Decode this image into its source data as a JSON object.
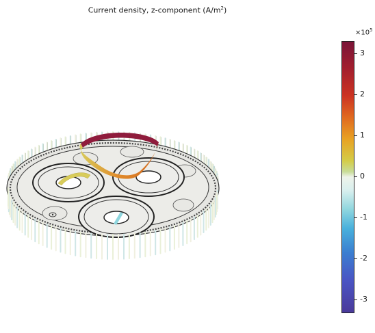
{
  "plot": {
    "title_text": "Current density, z-component (A/m",
    "title_sup": "2",
    "title_close": ")"
  },
  "colorbar": {
    "exponent_base": "×10",
    "exponent_power": "5",
    "tick_labels": [
      "3",
      "2",
      "1",
      "0",
      "-1",
      "-2",
      "-3"
    ],
    "ticks": [
      3,
      2,
      1,
      0,
      -1,
      -2,
      -3
    ],
    "range": [
      -3.3,
      3.3
    ],
    "colors": {
      "max": "#7a1538",
      "high": "#cc3322",
      "mid_high": "#e8a224",
      "zero": "#eef3ea",
      "mid_low": "#8fd6de",
      "low": "#3b7ed0",
      "min": "#4a3a9a"
    }
  },
  "scene": {
    "armor_wire_colors": [
      "#eaf0d8",
      "#cfe6e6",
      "#f0f0e0"
    ],
    "ribbon_colors": {
      "top": "#8f1c3c",
      "side": "#e08a2a",
      "lower": "#d8cc5a"
    }
  }
}
